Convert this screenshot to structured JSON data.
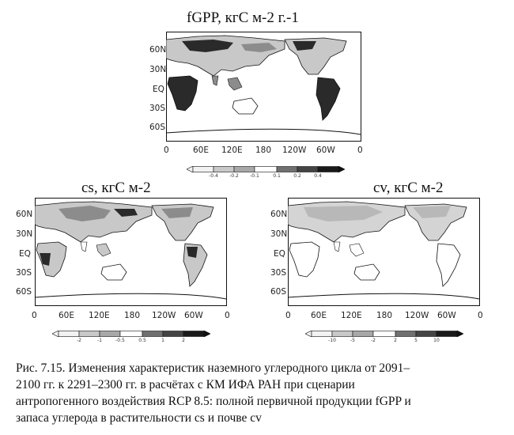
{
  "panels": [
    {
      "title": "fGPP, кгС м-2 г.-1",
      "lat_labels": [
        "60N",
        "30N",
        "EQ",
        "30S",
        "60S"
      ],
      "lon_labels": [
        "0",
        "60E",
        "120E",
        "180",
        "120W",
        "60W",
        "0"
      ],
      "colorbar_labels": [
        "-0.4",
        "-0.2",
        "-0.1",
        "0.1",
        "0.2",
        "0.4"
      ]
    },
    {
      "title": "cs, кгС м-2",
      "lat_labels": [
        "60N",
        "30N",
        "EQ",
        "30S",
        "60S"
      ],
      "lon_labels": [
        "0",
        "60E",
        "120E",
        "180",
        "120W",
        "60W",
        "0"
      ],
      "colorbar_labels": [
        "-2",
        "-1",
        "-0.5",
        "0.5",
        "1",
        "2"
      ]
    },
    {
      "title": "cv, кгС м-2",
      "lat_labels": [
        "60N",
        "30N",
        "EQ",
        "30S",
        "60S"
      ],
      "lon_labels": [
        "0",
        "60E",
        "120E",
        "180",
        "120W",
        "60W",
        "0"
      ],
      "colorbar_labels": [
        "-10",
        "-5",
        "-2",
        "2",
        "5",
        "10"
      ]
    }
  ],
  "caption": {
    "line1": "Рис. 7.15. Изменения характеристик наземного углеродного цикла от 2091–",
    "line2": "2100 гг. к 2291–2300 гг. в расчётах с КМ ИФА РАН при сценарии",
    "line3": "антропогенного воздействия RCP 8.5: полной первичной продукции fGPP и",
    "line4": "запаса углерода в растительности cs и почве cv"
  },
  "colors": {
    "ink": "#111111",
    "land_light": "#c8c8c8",
    "land_mid": "#8c8c8c",
    "land_dark": "#2a2a2a"
  }
}
